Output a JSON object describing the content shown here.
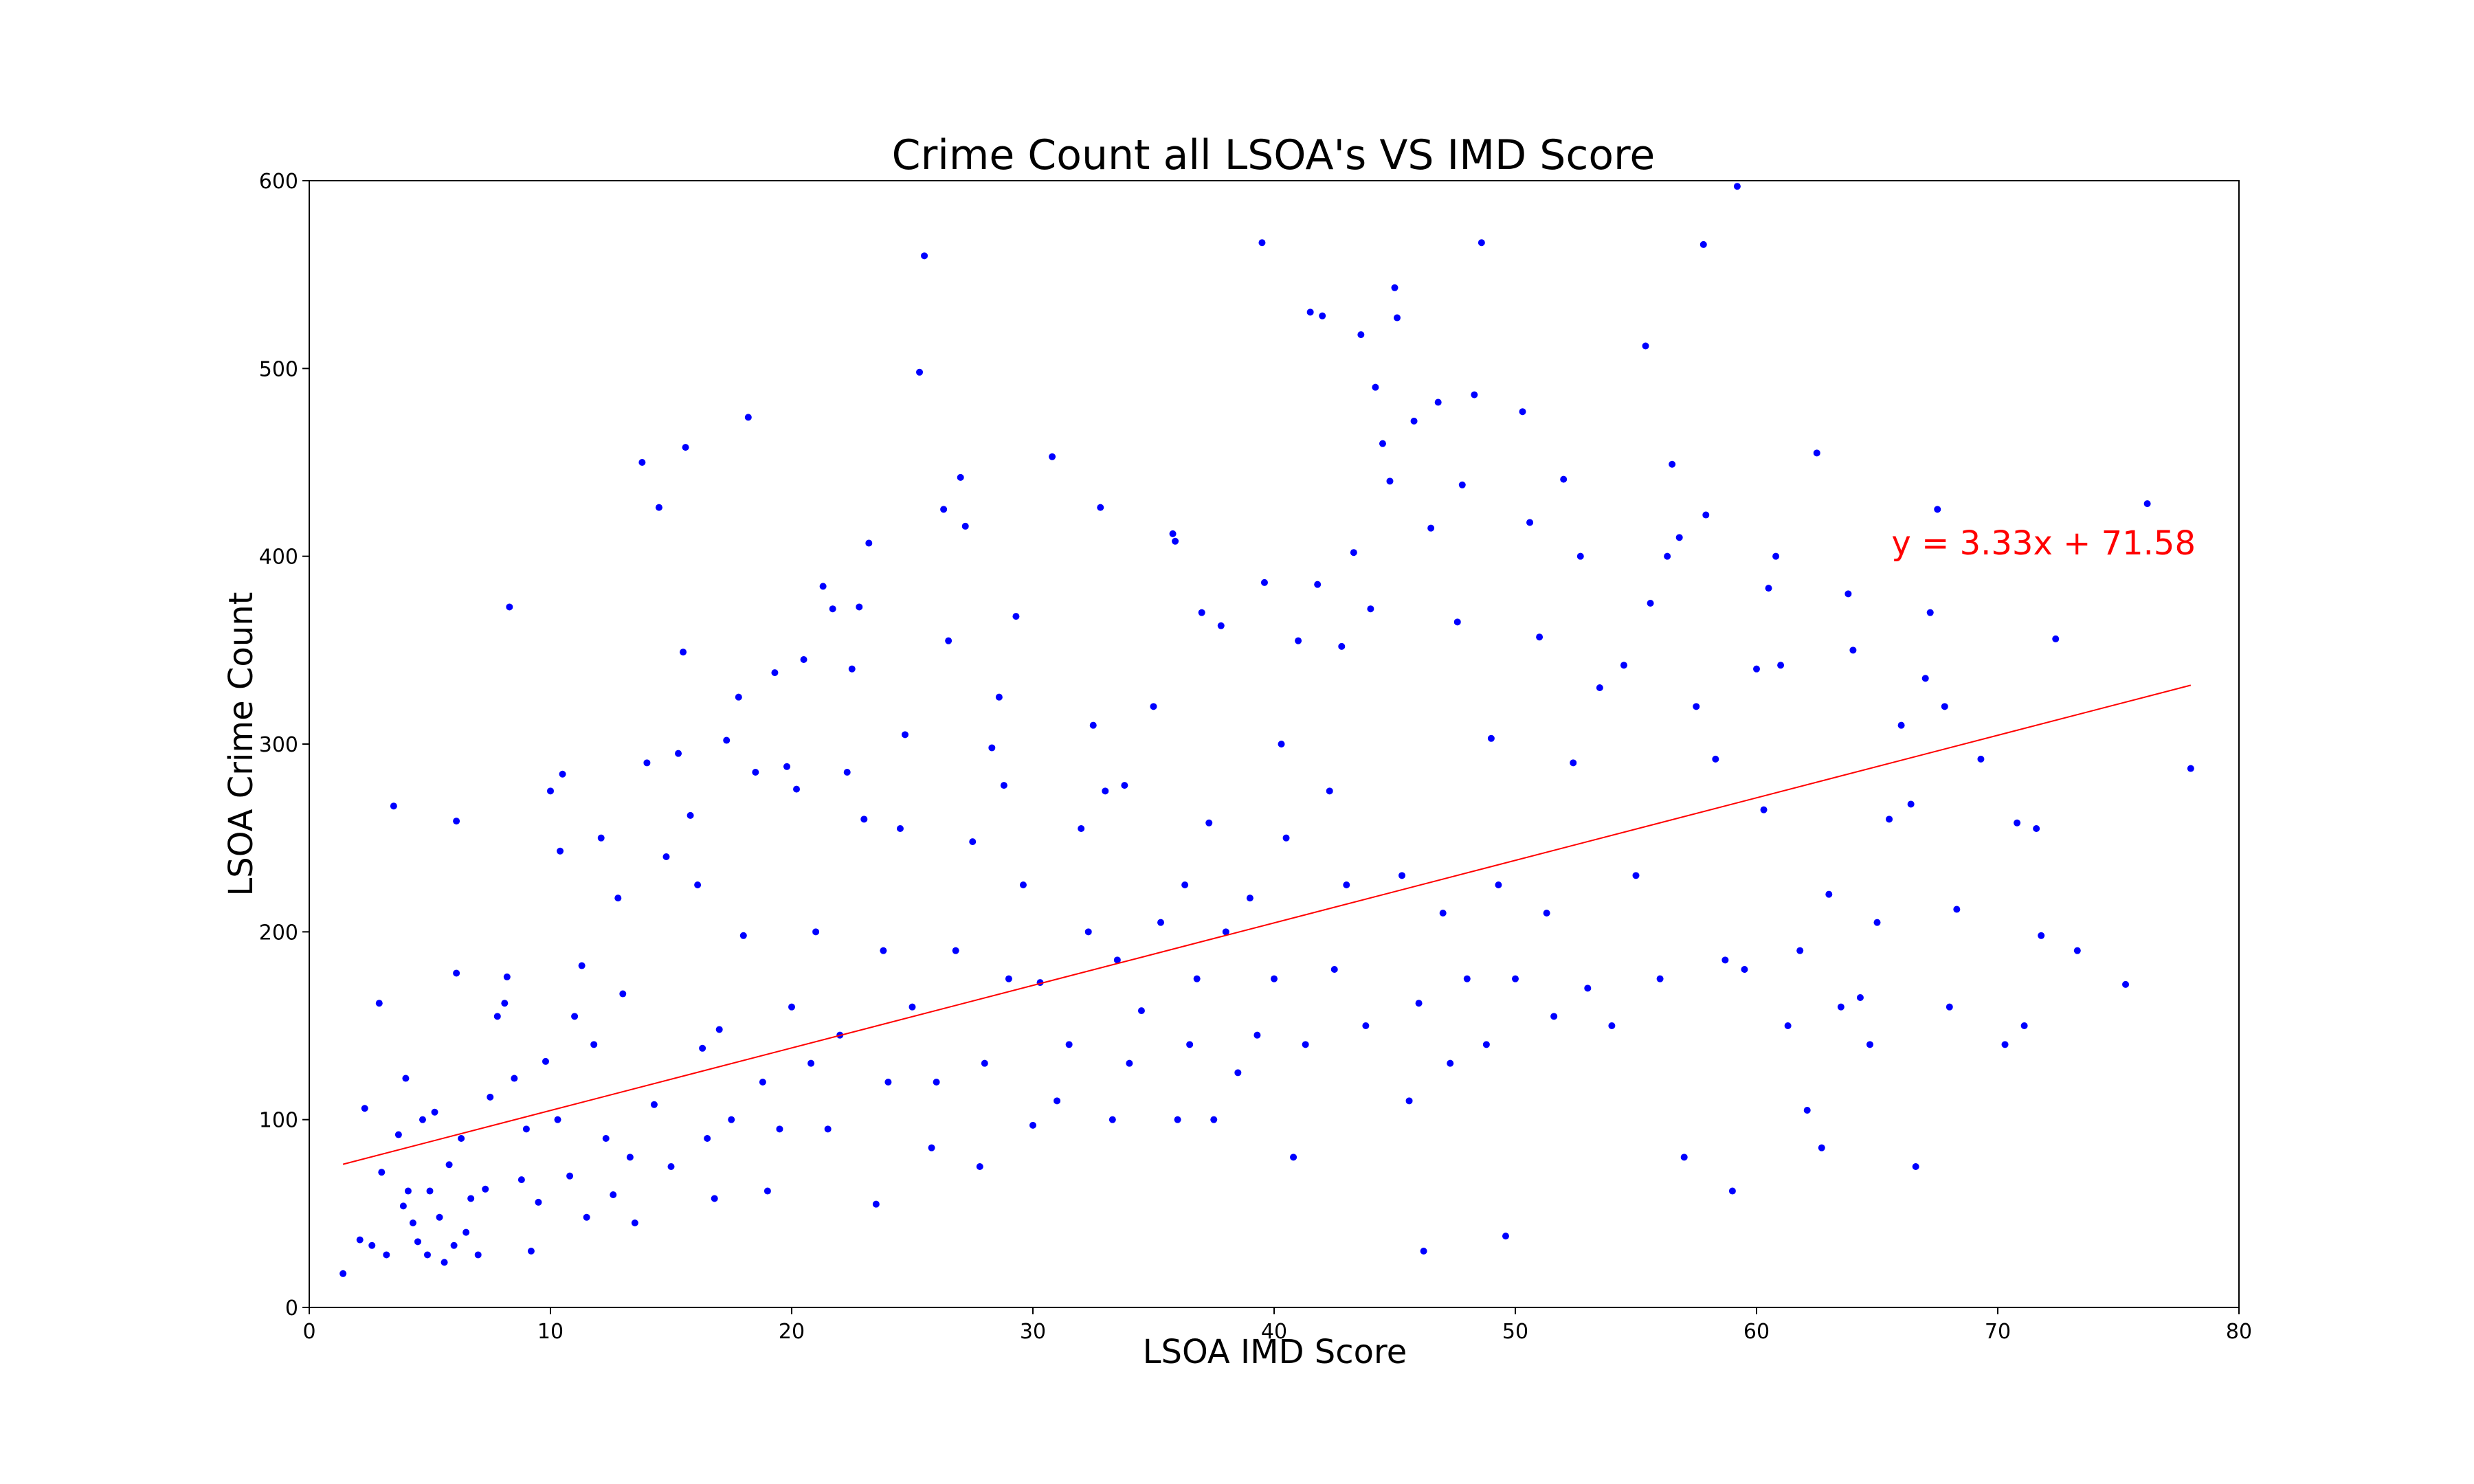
{
  "chart_data": {
    "type": "scatter",
    "title": "Crime Count all LSOA's VS IMD Score",
    "xlabel": "LSOA IMD Score",
    "ylabel": "LSOA Crime Count",
    "xlim": [
      0,
      80
    ],
    "ylim": [
      0,
      600
    ],
    "xticks": [
      0,
      10,
      20,
      30,
      40,
      50,
      60,
      70,
      80
    ],
    "yticks": [
      0,
      100,
      200,
      300,
      400,
      500,
      600
    ],
    "grid": false,
    "point_color": "#0000ff",
    "series": [
      {
        "values_note": "sampled points read from the scatter",
        "points": [
          [
            1.4,
            18
          ],
          [
            2.1,
            36
          ],
          [
            2.3,
            106
          ],
          [
            2.6,
            33
          ],
          [
            2.9,
            162
          ],
          [
            3.0,
            72
          ],
          [
            3.2,
            28
          ],
          [
            3.5,
            267
          ],
          [
            3.7,
            92
          ],
          [
            3.9,
            54
          ],
          [
            4.0,
            122
          ],
          [
            4.1,
            62
          ],
          [
            4.3,
            45
          ],
          [
            4.5,
            35
          ],
          [
            4.7,
            100
          ],
          [
            4.9,
            28
          ],
          [
            5.0,
            62
          ],
          [
            5.2,
            104
          ],
          [
            5.4,
            48
          ],
          [
            5.6,
            24
          ],
          [
            5.8,
            76
          ],
          [
            6.0,
            33
          ],
          [
            6.1,
            259
          ],
          [
            6.1,
            178
          ],
          [
            6.3,
            90
          ],
          [
            6.5,
            40
          ],
          [
            6.7,
            58
          ],
          [
            7.0,
            28
          ],
          [
            7.3,
            63
          ],
          [
            7.5,
            112
          ],
          [
            7.8,
            155
          ],
          [
            8.1,
            162
          ],
          [
            8.2,
            176
          ],
          [
            8.3,
            373
          ],
          [
            8.5,
            122
          ],
          [
            8.8,
            68
          ],
          [
            9.0,
            95
          ],
          [
            9.2,
            30
          ],
          [
            9.5,
            56
          ],
          [
            9.8,
            131
          ],
          [
            10.0,
            275
          ],
          [
            10.3,
            100
          ],
          [
            10.4,
            243
          ],
          [
            10.5,
            284
          ],
          [
            10.8,
            70
          ],
          [
            11.0,
            155
          ],
          [
            11.3,
            182
          ],
          [
            11.5,
            48
          ],
          [
            11.8,
            140
          ],
          [
            12.1,
            250
          ],
          [
            12.3,
            90
          ],
          [
            12.6,
            60
          ],
          [
            12.8,
            218
          ],
          [
            13.0,
            167
          ],
          [
            13.3,
            80
          ],
          [
            13.5,
            45
          ],
          [
            13.8,
            450
          ],
          [
            14.0,
            290
          ],
          [
            14.3,
            108
          ],
          [
            14.5,
            426
          ],
          [
            14.8,
            240
          ],
          [
            15.0,
            75
          ],
          [
            15.3,
            295
          ],
          [
            15.5,
            349
          ],
          [
            15.6,
            458
          ],
          [
            15.8,
            262
          ],
          [
            16.1,
            225
          ],
          [
            16.3,
            138
          ],
          [
            16.5,
            90
          ],
          [
            16.8,
            58
          ],
          [
            17.0,
            148
          ],
          [
            17.3,
            302
          ],
          [
            17.5,
            100
          ],
          [
            17.8,
            325
          ],
          [
            18.0,
            198
          ],
          [
            18.2,
            474
          ],
          [
            18.5,
            285
          ],
          [
            18.8,
            120
          ],
          [
            19.0,
            62
          ],
          [
            19.3,
            338
          ],
          [
            19.5,
            95
          ],
          [
            19.8,
            288
          ],
          [
            20.0,
            160
          ],
          [
            20.2,
            276
          ],
          [
            20.5,
            345
          ],
          [
            20.8,
            130
          ],
          [
            21.0,
            200
          ],
          [
            21.3,
            384
          ],
          [
            21.5,
            95
          ],
          [
            21.7,
            372
          ],
          [
            22.0,
            145
          ],
          [
            22.3,
            285
          ],
          [
            22.5,
            340
          ],
          [
            22.8,
            373
          ],
          [
            23.0,
            260
          ],
          [
            23.2,
            407
          ],
          [
            23.5,
            55
          ],
          [
            23.8,
            190
          ],
          [
            24.0,
            120
          ],
          [
            24.5,
            255
          ],
          [
            24.7,
            305
          ],
          [
            25.0,
            160
          ],
          [
            25.3,
            498
          ],
          [
            25.5,
            560
          ],
          [
            25.8,
            85
          ],
          [
            26.0,
            120
          ],
          [
            26.3,
            425
          ],
          [
            26.5,
            355
          ],
          [
            26.8,
            190
          ],
          [
            27.0,
            442
          ],
          [
            27.2,
            416
          ],
          [
            27.5,
            248
          ],
          [
            27.8,
            75
          ],
          [
            28.0,
            130
          ],
          [
            28.3,
            298
          ],
          [
            28.6,
            325
          ],
          [
            28.8,
            278
          ],
          [
            29.0,
            175
          ],
          [
            29.3,
            368
          ],
          [
            29.6,
            225
          ],
          [
            30.0,
            97
          ],
          [
            30.3,
            173
          ],
          [
            30.8,
            453
          ],
          [
            31.0,
            110
          ],
          [
            31.5,
            140
          ],
          [
            32.0,
            255
          ],
          [
            32.3,
            200
          ],
          [
            32.5,
            310
          ],
          [
            32.8,
            426
          ],
          [
            33.0,
            275
          ],
          [
            33.3,
            100
          ],
          [
            33.5,
            185
          ],
          [
            33.8,
            278
          ],
          [
            34.0,
            130
          ],
          [
            34.5,
            158
          ],
          [
            35.0,
            320
          ],
          [
            35.3,
            205
          ],
          [
            35.8,
            412
          ],
          [
            35.9,
            408
          ],
          [
            36.0,
            100
          ],
          [
            36.3,
            225
          ],
          [
            36.5,
            140
          ],
          [
            36.8,
            175
          ],
          [
            37.0,
            370
          ],
          [
            37.3,
            258
          ],
          [
            37.5,
            100
          ],
          [
            37.8,
            363
          ],
          [
            38.0,
            200
          ],
          [
            38.5,
            125
          ],
          [
            39.0,
            218
          ],
          [
            39.3,
            145
          ],
          [
            39.5,
            567
          ],
          [
            39.6,
            386
          ],
          [
            40.0,
            175
          ],
          [
            40.3,
            300
          ],
          [
            40.5,
            250
          ],
          [
            40.8,
            80
          ],
          [
            41.0,
            355
          ],
          [
            41.3,
            140
          ],
          [
            41.5,
            530
          ],
          [
            41.8,
            385
          ],
          [
            42.0,
            528
          ],
          [
            42.3,
            275
          ],
          [
            42.5,
            180
          ],
          [
            42.8,
            352
          ],
          [
            43.0,
            225
          ],
          [
            43.3,
            402
          ],
          [
            43.6,
            518
          ],
          [
            43.8,
            150
          ],
          [
            44.0,
            372
          ],
          [
            44.2,
            490
          ],
          [
            44.5,
            460
          ],
          [
            44.8,
            440
          ],
          [
            45.0,
            543
          ],
          [
            45.1,
            527
          ],
          [
            45.3,
            230
          ],
          [
            45.6,
            110
          ],
          [
            45.8,
            472
          ],
          [
            46.0,
            162
          ],
          [
            46.2,
            30
          ],
          [
            46.5,
            415
          ],
          [
            46.8,
            482
          ],
          [
            47.0,
            210
          ],
          [
            47.3,
            130
          ],
          [
            47.6,
            365
          ],
          [
            47.8,
            438
          ],
          [
            48.0,
            175
          ],
          [
            48.3,
            486
          ],
          [
            48.6,
            567
          ],
          [
            48.8,
            140
          ],
          [
            49.0,
            303
          ],
          [
            49.3,
            225
          ],
          [
            49.6,
            38
          ],
          [
            50.0,
            175
          ],
          [
            50.3,
            477
          ],
          [
            50.6,
            418
          ],
          [
            51.0,
            357
          ],
          [
            51.3,
            210
          ],
          [
            51.6,
            155
          ],
          [
            52.0,
            441
          ],
          [
            52.4,
            290
          ],
          [
            52.7,
            400
          ],
          [
            53.0,
            170
          ],
          [
            53.5,
            330
          ],
          [
            54.0,
            150
          ],
          [
            54.5,
            342
          ],
          [
            55.0,
            230
          ],
          [
            55.4,
            512
          ],
          [
            55.6,
            375
          ],
          [
            56.0,
            175
          ],
          [
            56.3,
            400
          ],
          [
            56.5,
            449
          ],
          [
            56.8,
            410
          ],
          [
            57.0,
            80
          ],
          [
            57.5,
            320
          ],
          [
            57.8,
            566
          ],
          [
            57.9,
            422
          ],
          [
            58.3,
            292
          ],
          [
            58.7,
            185
          ],
          [
            59.0,
            62
          ],
          [
            59.2,
            597
          ],
          [
            59.5,
            180
          ],
          [
            60.0,
            340
          ],
          [
            60.3,
            265
          ],
          [
            60.5,
            383
          ],
          [
            60.8,
            400
          ],
          [
            61.0,
            342
          ],
          [
            61.3,
            150
          ],
          [
            61.8,
            190
          ],
          [
            62.1,
            105
          ],
          [
            62.5,
            455
          ],
          [
            62.7,
            85
          ],
          [
            63.0,
            220
          ],
          [
            63.5,
            160
          ],
          [
            63.8,
            380
          ],
          [
            64.0,
            350
          ],
          [
            64.3,
            165
          ],
          [
            64.7,
            140
          ],
          [
            65.0,
            205
          ],
          [
            65.5,
            260
          ],
          [
            66.0,
            310
          ],
          [
            66.4,
            268
          ],
          [
            66.6,
            75
          ],
          [
            67.0,
            335
          ],
          [
            67.2,
            370
          ],
          [
            67.5,
            425
          ],
          [
            67.8,
            320
          ],
          [
            68.0,
            160
          ],
          [
            68.3,
            212
          ],
          [
            69.3,
            292
          ],
          [
            70.3,
            140
          ],
          [
            70.8,
            258
          ],
          [
            71.1,
            150
          ],
          [
            71.6,
            255
          ],
          [
            71.8,
            198
          ],
          [
            72.4,
            356
          ],
          [
            73.3,
            190
          ],
          [
            75.3,
            172
          ],
          [
            76.2,
            428
          ],
          [
            78.0,
            287
          ]
        ]
      }
    ],
    "trendline": {
      "slope": 3.33,
      "intercept": 71.58,
      "x_range": [
        1.4,
        78.0
      ],
      "label": "y = 3.33x + 71.58",
      "color": "#ff0000"
    }
  }
}
